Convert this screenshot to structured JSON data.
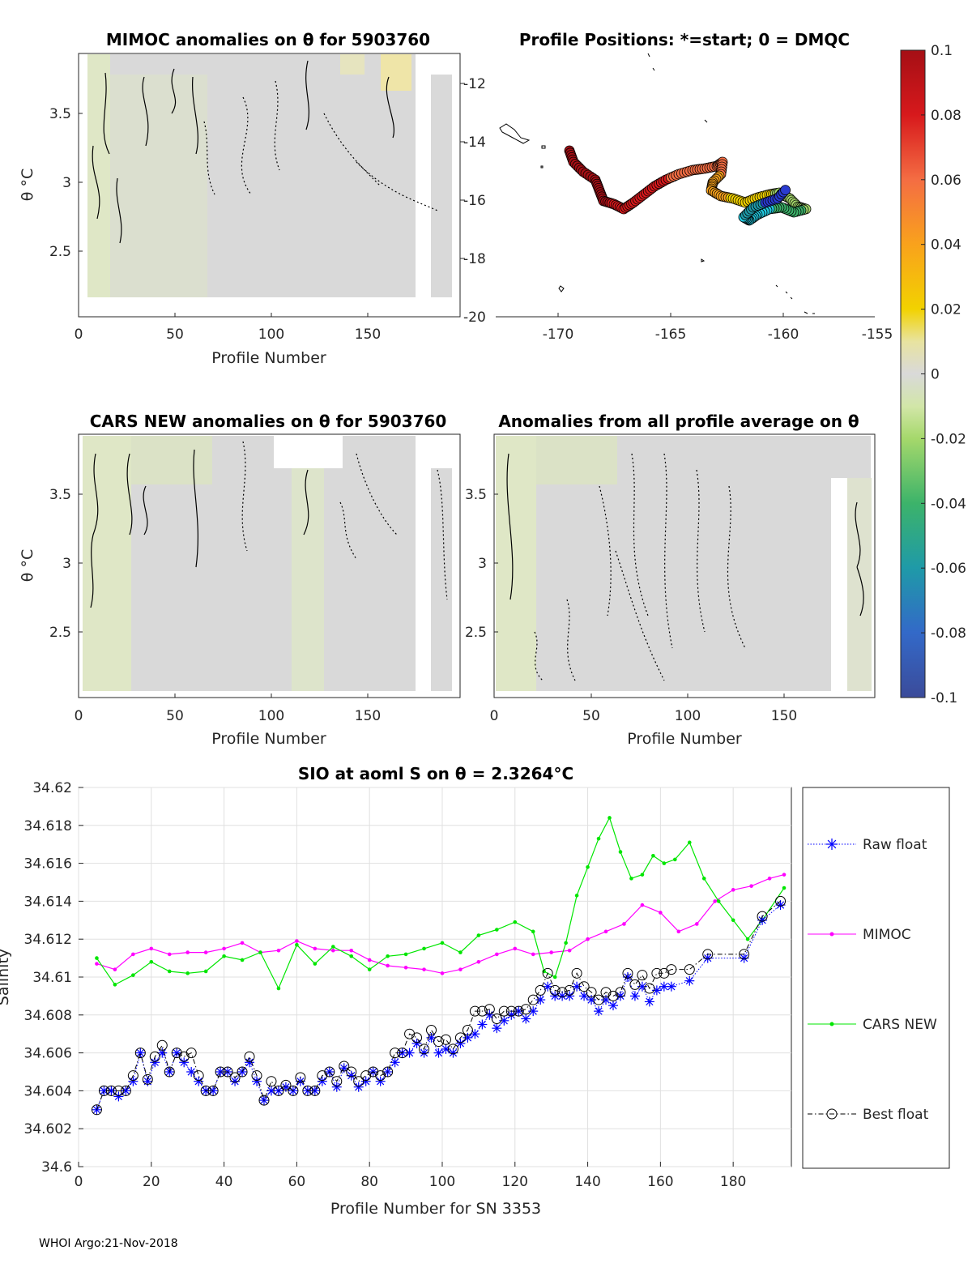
{
  "panels": {
    "mimoc": {
      "title": "MIMOC anomalies on θ  for 5903760",
      "xlabel": "Profile Number",
      "ylabel": "θ °C",
      "xticks": [
        "0",
        "50",
        "100",
        "150"
      ],
      "yticks": [
        "3.5",
        "3",
        "2.5"
      ]
    },
    "positions": {
      "title": "Profile Positions: *=start; 0 = DMQC",
      "xticks": [
        "-170",
        "-165",
        "-160",
        "-155"
      ],
      "yticks": [
        "-12",
        "-14",
        "-16",
        "-18",
        "-20"
      ]
    },
    "cars": {
      "title": "CARS NEW anomalies on θ for 5903760",
      "xlabel": "Profile Number",
      "ylabel": "θ °C",
      "xticks": [
        "0",
        "50",
        "100",
        "150"
      ],
      "yticks": [
        "3.5",
        "3",
        "2.5"
      ]
    },
    "avg": {
      "title": "Anomalies from all profile average on θ",
      "xlabel": "Profile Number",
      "xticks": [
        "0",
        "50",
        "100",
        "150"
      ],
      "yticks": [
        "3.5",
        "3",
        "2.5"
      ]
    }
  },
  "colorbar": {
    "ticks": [
      "0.1",
      "0.08",
      "0.06",
      "0.04",
      "0.02",
      "0",
      "-0.02",
      "-0.04",
      "-0.06",
      "-0.08",
      "-0.1"
    ]
  },
  "chart_data": {
    "type": "line",
    "title": "SIO at aoml S on θ = 2.3264",
    "title_unit": "°C",
    "xlabel": "Profile Number for SN 3353",
    "ylabel": "Salinity",
    "xlim": [
      0,
      196
    ],
    "ylim": [
      34.6,
      34.62
    ],
    "xticks": [
      0,
      20,
      40,
      60,
      80,
      100,
      120,
      140,
      160,
      180
    ],
    "yticks": [
      34.6,
      34.602,
      34.604,
      34.606,
      34.608,
      34.61,
      34.612,
      34.614,
      34.616,
      34.618,
      34.62
    ],
    "legend": {
      "position": "right",
      "entries": [
        "Raw float",
        "MIMOC",
        "CARS NEW",
        "Best float"
      ]
    },
    "series": [
      {
        "name": "MIMOC",
        "color": "#ff00ff",
        "x": [
          5,
          10,
          15,
          20,
          25,
          30,
          35,
          40,
          45,
          50,
          55,
          60,
          65,
          70,
          75,
          80,
          85,
          90,
          95,
          100,
          105,
          110,
          115,
          120,
          125,
          130,
          135,
          140,
          145,
          150,
          155,
          160,
          165,
          170,
          175,
          180,
          185,
          190,
          194
        ],
        "y": [
          34.6107,
          34.6104,
          34.6112,
          34.6115,
          34.6112,
          34.6113,
          34.6113,
          34.6115,
          34.6118,
          34.6113,
          34.6114,
          34.6119,
          34.6115,
          34.6114,
          34.6114,
          34.6109,
          34.6106,
          34.6105,
          34.6104,
          34.6102,
          34.6104,
          34.6108,
          34.6112,
          34.6115,
          34.6112,
          34.6113,
          34.6114,
          34.612,
          34.6124,
          34.6128,
          34.6138,
          34.6134,
          34.6124,
          34.6128,
          34.614,
          34.6146,
          34.6148,
          34.6152,
          34.6154
        ]
      },
      {
        "name": "CARS NEW",
        "color": "#00e600",
        "x": [
          5,
          10,
          15,
          20,
          25,
          30,
          35,
          40,
          45,
          50,
          55,
          60,
          65,
          70,
          75,
          80,
          85,
          90,
          95,
          100,
          105,
          110,
          115,
          120,
          125,
          128,
          131,
          134,
          137,
          140,
          143,
          146,
          149,
          152,
          155,
          158,
          161,
          164,
          168,
          172,
          176,
          180,
          184,
          188,
          194
        ],
        "y": [
          34.611,
          34.6096,
          34.6101,
          34.6108,
          34.6103,
          34.6102,
          34.6103,
          34.6111,
          34.6109,
          34.6113,
          34.6094,
          34.6117,
          34.6107,
          34.6116,
          34.6111,
          34.6104,
          34.6111,
          34.6112,
          34.6115,
          34.6118,
          34.6113,
          34.6122,
          34.6125,
          34.6129,
          34.6124,
          34.6103,
          34.61,
          34.6118,
          34.6143,
          34.6158,
          34.6173,
          34.6184,
          34.6166,
          34.6152,
          34.6154,
          34.6164,
          34.616,
          34.6162,
          34.6171,
          34.6152,
          34.614,
          34.613,
          34.612,
          34.613,
          34.6147
        ]
      },
      {
        "name": "Raw float",
        "color": "#0000ff",
        "x": [
          5,
          7,
          9,
          11,
          13,
          15,
          17,
          19,
          21,
          23,
          25,
          27,
          29,
          31,
          33,
          35,
          37,
          39,
          41,
          43,
          45,
          47,
          49,
          51,
          53,
          55,
          57,
          59,
          61,
          63,
          65,
          67,
          69,
          71,
          73,
          75,
          77,
          79,
          81,
          83,
          85,
          87,
          89,
          91,
          93,
          95,
          97,
          99,
          101,
          103,
          105,
          107,
          109,
          111,
          113,
          115,
          117,
          119,
          121,
          123,
          125,
          127,
          129,
          131,
          133,
          135,
          137,
          139,
          141,
          143,
          145,
          147,
          149,
          151,
          153,
          155,
          157,
          159,
          161,
          163,
          168,
          173,
          183,
          188,
          193
        ],
        "y": [
          34.603,
          34.604,
          34.604,
          34.6037,
          34.604,
          34.6045,
          34.606,
          34.6045,
          34.6055,
          34.606,
          34.605,
          34.606,
          34.6055,
          34.605,
          34.6045,
          34.604,
          34.604,
          34.605,
          34.605,
          34.6045,
          34.605,
          34.6055,
          34.6045,
          34.6035,
          34.604,
          34.604,
          34.6042,
          34.604,
          34.6045,
          34.604,
          34.604,
          34.6045,
          34.605,
          34.6042,
          34.6052,
          34.6048,
          34.6042,
          34.6045,
          34.605,
          34.6045,
          34.605,
          34.6055,
          34.606,
          34.606,
          34.6065,
          34.606,
          34.6068,
          34.606,
          34.6062,
          34.606,
          34.6065,
          34.6068,
          34.607,
          34.6075,
          34.608,
          34.6073,
          34.6077,
          34.608,
          34.6082,
          34.6078,
          34.6082,
          34.6088,
          34.6095,
          34.609,
          34.609,
          34.609,
          34.6095,
          34.609,
          34.6088,
          34.6082,
          34.6088,
          34.6085,
          34.609,
          34.61,
          34.609,
          34.6095,
          34.6087,
          34.6093,
          34.6095,
          34.6095,
          34.6098,
          34.611,
          34.611,
          34.613,
          34.6138
        ]
      },
      {
        "name": "Best float",
        "color": "#000000",
        "x": [
          5,
          7,
          9,
          11,
          13,
          15,
          17,
          19,
          21,
          23,
          25,
          27,
          29,
          31,
          33,
          35,
          37,
          39,
          41,
          43,
          45,
          47,
          49,
          51,
          53,
          55,
          57,
          59,
          61,
          63,
          65,
          67,
          69,
          71,
          73,
          75,
          77,
          79,
          81,
          83,
          85,
          87,
          89,
          91,
          93,
          95,
          97,
          99,
          101,
          103,
          105,
          107,
          109,
          111,
          113,
          115,
          117,
          119,
          121,
          123,
          125,
          127,
          129,
          131,
          133,
          135,
          137,
          139,
          141,
          143,
          145,
          147,
          149,
          151,
          153,
          155,
          157,
          159,
          161,
          163,
          168,
          173,
          183,
          188,
          193
        ],
        "y": [
          34.603,
          34.604,
          34.604,
          34.604,
          34.604,
          34.6048,
          34.606,
          34.6046,
          34.6058,
          34.6064,
          34.605,
          34.606,
          34.6058,
          34.606,
          34.6048,
          34.604,
          34.604,
          34.605,
          34.605,
          34.6047,
          34.605,
          34.6058,
          34.6048,
          34.6035,
          34.6045,
          34.604,
          34.6043,
          34.604,
          34.6047,
          34.604,
          34.604,
          34.6048,
          34.605,
          34.6045,
          34.6053,
          34.605,
          34.6045,
          34.6048,
          34.605,
          34.6048,
          34.605,
          34.606,
          34.606,
          34.607,
          34.6068,
          34.6062,
          34.6072,
          34.6066,
          34.6067,
          34.6062,
          34.6068,
          34.6072,
          34.6082,
          34.6082,
          34.6083,
          34.6078,
          34.6082,
          34.6082,
          34.6082,
          34.6083,
          34.6088,
          34.6093,
          34.6102,
          34.6093,
          34.6092,
          34.6093,
          34.6102,
          34.6095,
          34.6092,
          34.6088,
          34.6092,
          34.609,
          34.6092,
          34.6102,
          34.6096,
          34.6101,
          34.6094,
          34.6102,
          34.6102,
          34.6104,
          34.6104,
          34.6112,
          34.6112,
          34.6132,
          34.614
        ]
      }
    ]
  },
  "footer": "WHOI Argo:21-Nov-2018"
}
